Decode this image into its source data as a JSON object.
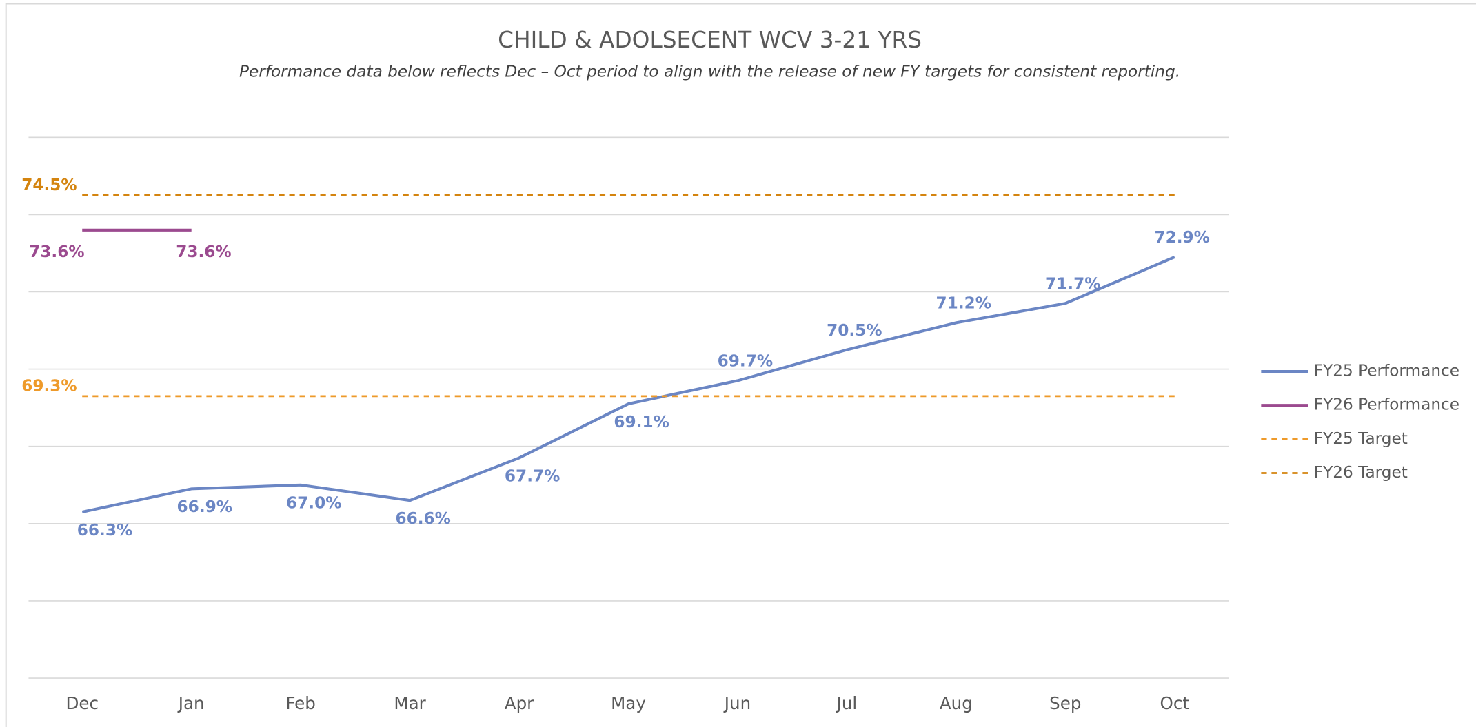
{
  "chart_data": {
    "type": "line",
    "title": "CHILD & ADOLSECENT WCV 3-21 YRS",
    "subtitle": "Performance data below reflects Dec – Oct period to align with the release of new FY targets for consistent reporting.",
    "categories": [
      "Dec",
      "Jan",
      "Feb",
      "Mar",
      "Apr",
      "May",
      "Jun",
      "Jul",
      "Aug",
      "Sep",
      "Oct"
    ],
    "ylim": [
      62,
      76
    ],
    "yticks": [
      62,
      64,
      66,
      68,
      70,
      72,
      74,
      76
    ],
    "grid": true,
    "legend": "right",
    "series": [
      {
        "name": "FY25 Performance",
        "color": "#6b86c4",
        "dashed": false,
        "values": [
          66.3,
          66.9,
          67.0,
          66.6,
          67.7,
          69.1,
          69.7,
          70.5,
          71.2,
          71.7,
          72.9
        ],
        "value_labels": [
          "66.3%",
          "66.9%",
          "67.0%",
          "66.6%",
          "67.7%",
          "69.1%",
          "69.7%",
          "70.5%",
          "71.2%",
          "71.7%",
          "72.9%"
        ]
      },
      {
        "name": "FY26 Performance",
        "color": "#9b4a8f",
        "dashed": false,
        "values": [
          73.6,
          73.6,
          null,
          null,
          null,
          null,
          null,
          null,
          null,
          null,
          null
        ],
        "value_labels": [
          "73.6%",
          "73.6%",
          null,
          null,
          null,
          null,
          null,
          null,
          null,
          null,
          null
        ]
      },
      {
        "name": "FY25 Target",
        "color": "#ee9a2a",
        "dashed": true,
        "values": [
          69.3,
          69.3,
          69.3,
          69.3,
          69.3,
          69.3,
          69.3,
          69.3,
          69.3,
          69.3,
          69.3
        ],
        "value_labels": [
          "69.3%",
          null,
          null,
          null,
          null,
          null,
          null,
          null,
          null,
          null,
          null
        ]
      },
      {
        "name": "FY26 Target",
        "color": "#d4840f",
        "dashed": true,
        "values": [
          74.5,
          74.5,
          74.5,
          74.5,
          74.5,
          74.5,
          74.5,
          74.5,
          74.5,
          74.5,
          74.5
        ],
        "value_labels": [
          "74.5%",
          null,
          null,
          null,
          null,
          null,
          null,
          null,
          null,
          null,
          null
        ]
      }
    ]
  }
}
